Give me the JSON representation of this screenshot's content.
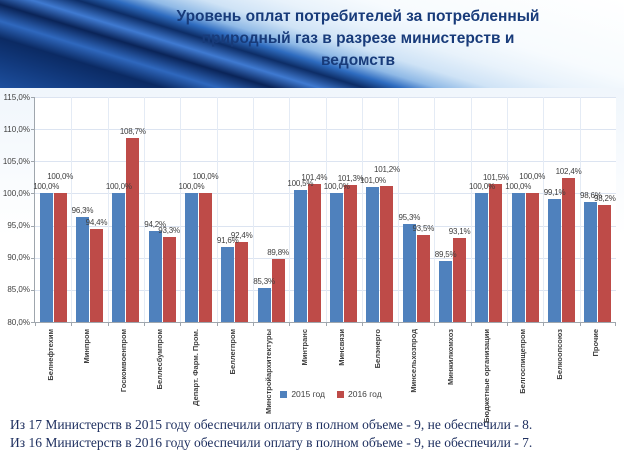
{
  "header": {
    "title_lines": [
      "Уровень оплат потребителей за потребленный",
      "природный газ в разрезе министерств и",
      "ведомств"
    ]
  },
  "chart_data": {
    "type": "bar",
    "title": "Уровень оплат потребителей за потребленный природный газ в разрезе министерств и ведомств",
    "categories": [
      "Белнефтехим",
      "Минпром",
      "Госкомвоенпром",
      "Беллесбумпром",
      "Департ. Фарм. Пром.",
      "Беллегпром",
      "Минстройархитектуры",
      "Минтранс",
      "Минсвязи",
      "Белэнерго",
      "Минсельхозпрод",
      "Минжилкомхоз",
      "Бюджетные организации",
      "Белгоспищепром",
      "Белкоопсоюз",
      "Прочие"
    ],
    "series": [
      {
        "name": "2015 год",
        "color": "#4F81BD",
        "values": [
          100.0,
          96.3,
          100.0,
          94.2,
          100.0,
          91.6,
          85.3,
          100.5,
          100.0,
          101.0,
          95.3,
          89.5,
          100.0,
          100.0,
          99.1,
          98.6
        ]
      },
      {
        "name": "2016 год",
        "color": "#BE4B48",
        "values": [
          100.0,
          94.4,
          108.7,
          93.3,
          100.0,
          92.4,
          89.8,
          101.4,
          101.3,
          101.2,
          93.5,
          93.1,
          101.5,
          100.0,
          102.4,
          98.2
        ]
      }
    ],
    "ylim": [
      80,
      115
    ],
    "ytick_step": 5,
    "ytick_labels": [
      "80,0%",
      "85,0%",
      "90,0%",
      "95,0%",
      "100,0%",
      "105,0%",
      "110,0%",
      "115,0%"
    ],
    "value_label_format": "one-decimal-comma-percent",
    "grid": true,
    "legend_position": "bottom"
  },
  "footer": {
    "lines": [
      "Из 17 Министерств в 2015 году обеспечили оплату в полном объеме - 9, не обеспечили - 8.",
      "Из 16 Министерств в 2016 году обеспечили оплату в полном объеме - 9, не обеспечили - 7."
    ]
  }
}
